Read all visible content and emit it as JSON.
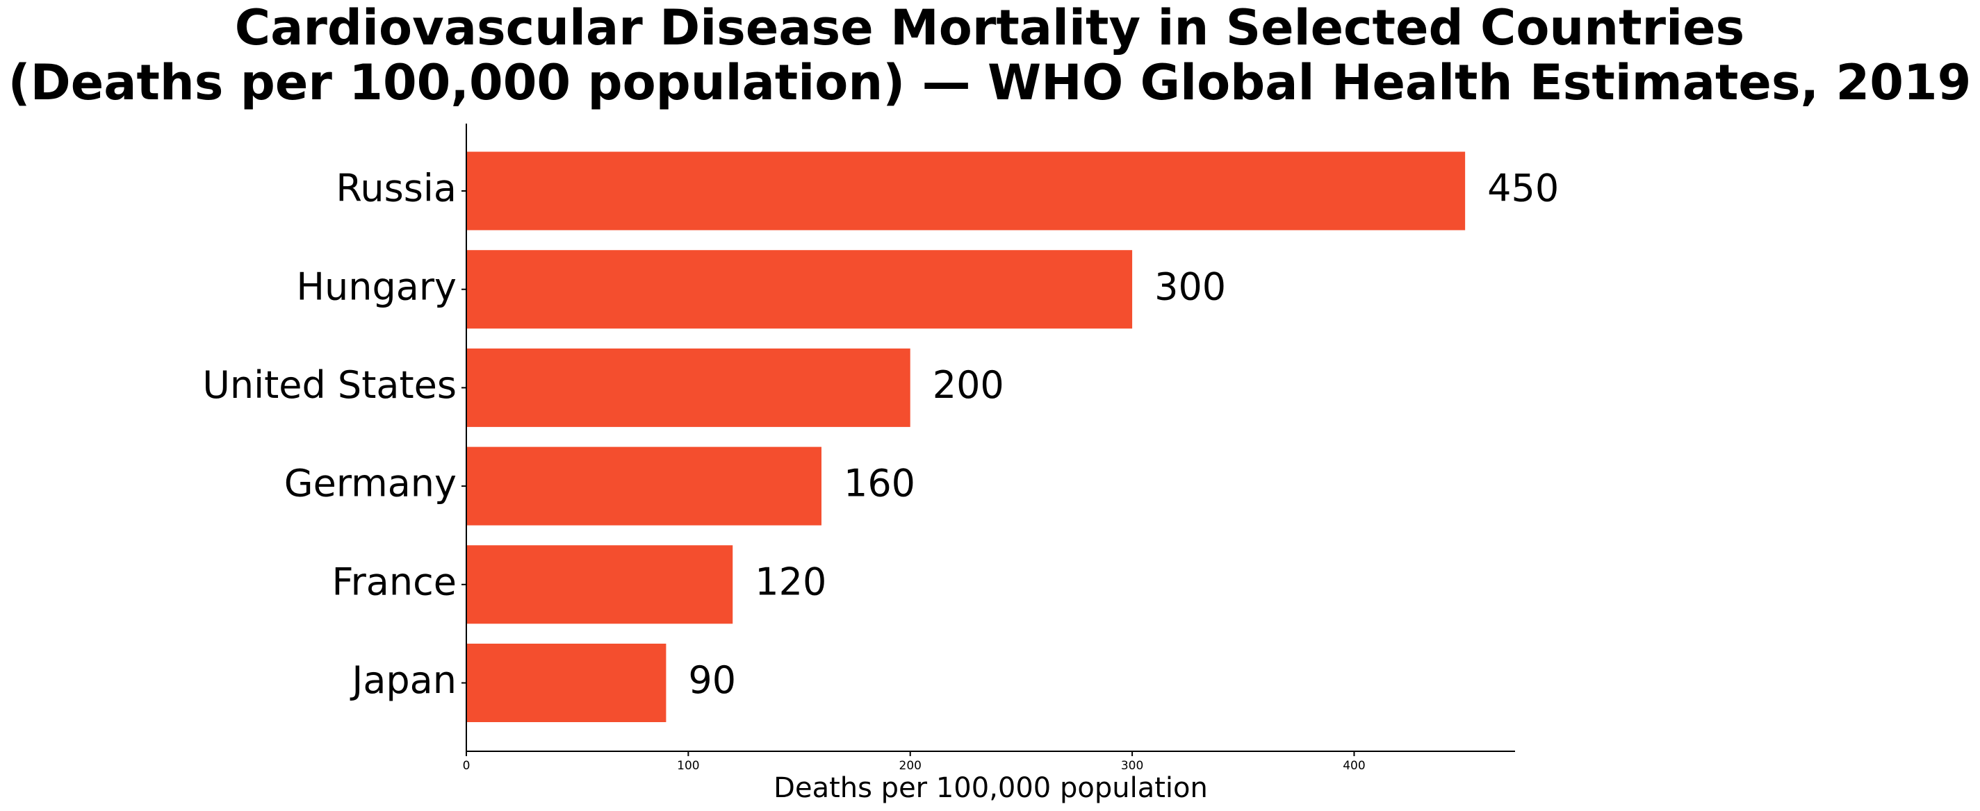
{
  "chart_data": {
    "type": "bar",
    "orientation": "horizontal",
    "title": "Cardiovascular Disease Mortality in Selected Countries\n(Deaths per 100,000 population) — WHO Global Health Estimates, 2019",
    "title_lines": [
      "Cardiovascular Disease Mortality in Selected Countries",
      "(Deaths per 100,000 population) — WHO Global Health Estimates, 2019"
    ],
    "categories": [
      "Russia",
      "Hungary",
      "United States",
      "Germany",
      "France",
      "Japan"
    ],
    "values": [
      450,
      300,
      200,
      160,
      120,
      90
    ],
    "value_labels": [
      "450",
      "300",
      "200",
      "160",
      "120",
      "90"
    ],
    "xlabel": "Deaths per 100,000 population",
    "ylabel": "",
    "xlim": [
      0,
      472.5
    ],
    "xticks": [
      0,
      100,
      200,
      300,
      400
    ],
    "xtick_labels": [
      "0",
      "100",
      "200",
      "300",
      "400"
    ],
    "grid": false,
    "bar_color": "#F44E2E"
  }
}
